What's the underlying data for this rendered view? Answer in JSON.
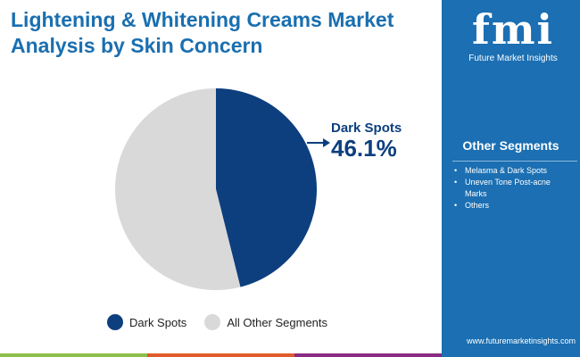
{
  "title": "Lightening & Whitening Creams Market Analysis by Skin Concern",
  "logo": {
    "mark": "fmi",
    "name": "Future Market Insights"
  },
  "sidebar": {
    "heading": "Other Segments",
    "items": [
      "Melasma & Dark Spots",
      "Uneven Tone Post-acne Marks",
      "Others"
    ],
    "url": "www.futuremarketinsights.com"
  },
  "colors": {
    "accent": "#1b6fb2",
    "dark": "#0d3f7e",
    "light": "#d9d9d9",
    "stripe": [
      "#8cc04b",
      "#e05a2b",
      "#8a2a84"
    ]
  },
  "chart_data": {
    "type": "pie",
    "slices": [
      {
        "label": "Dark Spots",
        "value": 46.1,
        "color": "#0d3f7e"
      },
      {
        "label": "All Other Segments",
        "value": 53.9,
        "color": "#d9d9d9"
      }
    ],
    "annotation": {
      "label": "Dark Spots",
      "value": "46.1%"
    },
    "legend": "bottom"
  }
}
